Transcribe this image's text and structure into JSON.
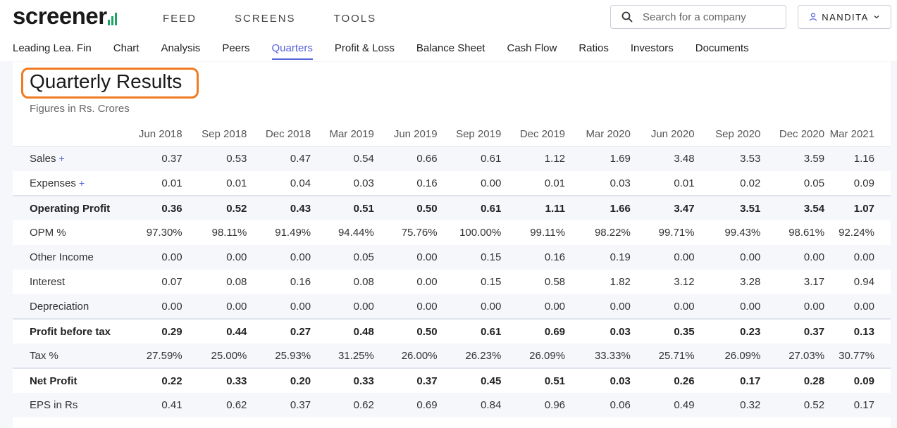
{
  "brand": {
    "name": "screener",
    "accent": "#21a366"
  },
  "nav": {
    "items": [
      "FEED",
      "SCREENS",
      "TOOLS"
    ]
  },
  "search": {
    "placeholder": "Search for a company"
  },
  "user": {
    "name": "NANDITA"
  },
  "subnav": {
    "items": [
      "Leading Lea. Fin",
      "Chart",
      "Analysis",
      "Peers",
      "Quarters",
      "Profit & Loss",
      "Balance Sheet",
      "Cash Flow",
      "Ratios",
      "Investors",
      "Documents"
    ],
    "active": "Quarters"
  },
  "section": {
    "title": "Quarterly Results",
    "subtitle": "Figures in Rs. Crores"
  },
  "table": {
    "columns": [
      "Jun 2018",
      "Sep 2018",
      "Dec 2018",
      "Mar 2019",
      "Jun 2019",
      "Sep 2019",
      "Dec 2019",
      "Mar 2020",
      "Jun 2020",
      "Sep 2020",
      "Dec 2020",
      "Mar 2021"
    ],
    "rows": [
      {
        "label": "Sales",
        "plus": "+",
        "values": [
          "0.37",
          "0.53",
          "0.47",
          "0.54",
          "0.66",
          "0.61",
          "1.12",
          "1.69",
          "3.48",
          "3.53",
          "3.59",
          "1.16"
        ]
      },
      {
        "label": "Expenses",
        "plus": "+",
        "values": [
          "0.01",
          "0.01",
          "0.04",
          "0.03",
          "0.16",
          "0.00",
          "0.01",
          "0.03",
          "0.01",
          "0.02",
          "0.05",
          "0.09"
        ]
      },
      {
        "label": "Operating Profit",
        "bold": true,
        "values": [
          "0.36",
          "0.52",
          "0.43",
          "0.51",
          "0.50",
          "0.61",
          "1.11",
          "1.66",
          "3.47",
          "3.51",
          "3.54",
          "1.07"
        ]
      },
      {
        "label": "OPM %",
        "values": [
          "97.30%",
          "98.11%",
          "91.49%",
          "94.44%",
          "75.76%",
          "100.00%",
          "99.11%",
          "98.22%",
          "99.71%",
          "99.43%",
          "98.61%",
          "92.24%"
        ]
      },
      {
        "label": "Other Income",
        "values": [
          "0.00",
          "0.00",
          "0.00",
          "0.05",
          "0.00",
          "0.15",
          "0.16",
          "0.19",
          "0.00",
          "0.00",
          "0.00",
          "0.00"
        ]
      },
      {
        "label": "Interest",
        "values": [
          "0.07",
          "0.08",
          "0.16",
          "0.08",
          "0.00",
          "0.15",
          "0.58",
          "1.82",
          "3.12",
          "3.28",
          "3.17",
          "0.94"
        ]
      },
      {
        "label": "Depreciation",
        "values": [
          "0.00",
          "0.00",
          "0.00",
          "0.00",
          "0.00",
          "0.00",
          "0.00",
          "0.00",
          "0.00",
          "0.00",
          "0.00",
          "0.00"
        ]
      },
      {
        "label": "Profit before tax",
        "bold": true,
        "values": [
          "0.29",
          "0.44",
          "0.27",
          "0.48",
          "0.50",
          "0.61",
          "0.69",
          "0.03",
          "0.35",
          "0.23",
          "0.37",
          "0.13"
        ]
      },
      {
        "label": "Tax %",
        "values": [
          "27.59%",
          "25.00%",
          "25.93%",
          "31.25%",
          "26.00%",
          "26.23%",
          "26.09%",
          "33.33%",
          "25.71%",
          "26.09%",
          "27.03%",
          "30.77%"
        ]
      },
      {
        "label": "Net Profit",
        "bold": true,
        "values": [
          "0.22",
          "0.33",
          "0.20",
          "0.33",
          "0.37",
          "0.45",
          "0.51",
          "0.03",
          "0.26",
          "0.17",
          "0.28",
          "0.09"
        ]
      },
      {
        "label": "EPS in Rs",
        "values": [
          "0.41",
          "0.62",
          "0.37",
          "0.62",
          "0.69",
          "0.84",
          "0.96",
          "0.06",
          "0.49",
          "0.32",
          "0.52",
          "0.17"
        ]
      }
    ]
  }
}
